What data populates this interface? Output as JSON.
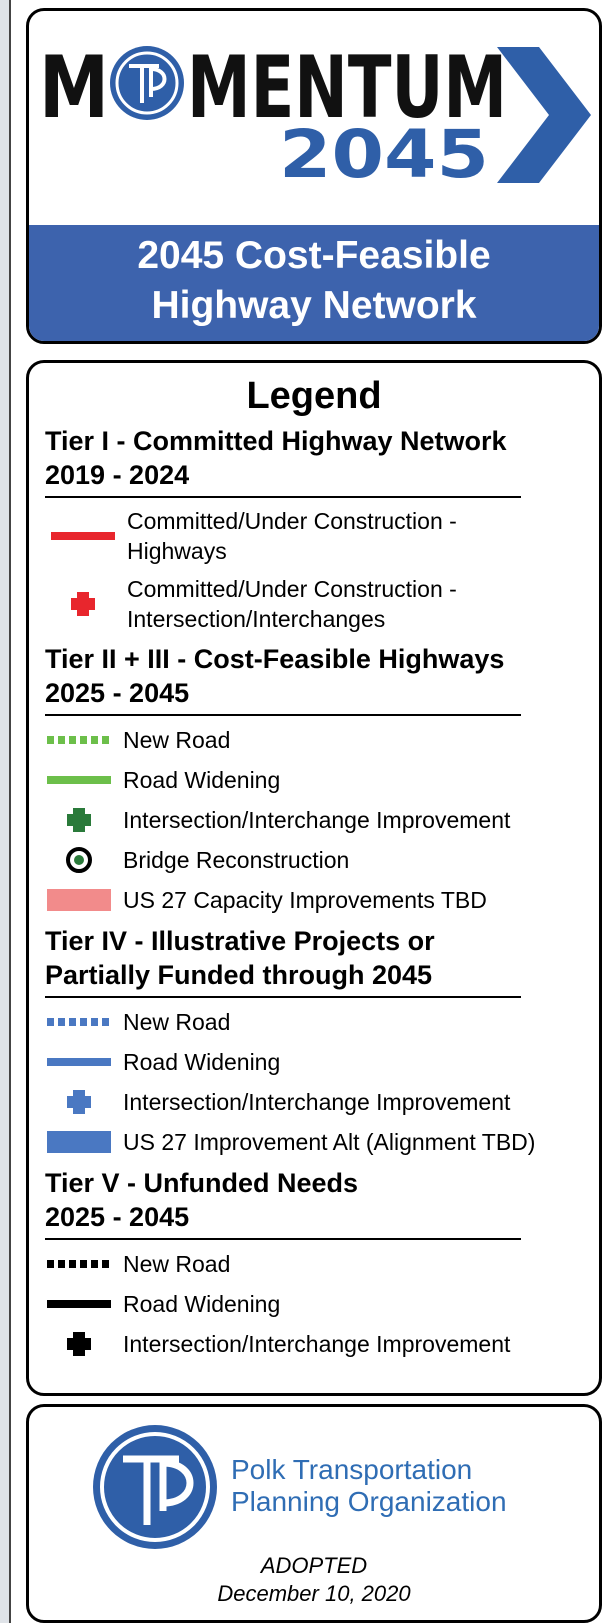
{
  "header": {
    "logo": {
      "word_start": "M",
      "word_end": "MENTUM",
      "year": "2045"
    },
    "title_lines": [
      "2045 Cost-Feasible",
      "Highway Network"
    ]
  },
  "legend": {
    "title": "Legend",
    "sections": [
      {
        "title_lines": [
          "Tier I - Committed Highway Network",
          "2019 - 2024"
        ],
        "items": [
          {
            "label": "Committed/Under Construction - Highways",
            "symbol": "solid",
            "color": "#e8262d"
          },
          {
            "label": "Committed/Under Construction - Intersection/Interchanges",
            "symbol": "plus",
            "color": "#e8262d"
          }
        ]
      },
      {
        "title_lines": [
          "Tier II + III - Cost-Feasible Highways",
          "2025 - 2045"
        ],
        "items": [
          {
            "label": "New Road",
            "symbol": "dashed",
            "color": "#6cbf4a"
          },
          {
            "label": "Road Widening",
            "symbol": "solid",
            "color": "#6cbf4a"
          },
          {
            "label": "Intersection/Interchange Improvement",
            "symbol": "plus",
            "color": "#2a7a3a"
          },
          {
            "label": "Bridge Reconstruction",
            "symbol": "bullseye",
            "color": "#2a7a3a"
          },
          {
            "label": "US 27 Capacity Improvements TBD",
            "symbol": "band",
            "color": "#f28b8b"
          }
        ]
      },
      {
        "title_lines": [
          "Tier IV - Illustrative Projects or",
          "Partially Funded through 2045"
        ],
        "items": [
          {
            "label": "New Road",
            "symbol": "dashed",
            "color": "#4a78c2"
          },
          {
            "label": "Road Widening",
            "symbol": "solid",
            "color": "#4a78c2"
          },
          {
            "label": "Intersection/Interchange Improvement",
            "symbol": "plus",
            "color": "#4a78c2"
          },
          {
            "label": "US 27 Improvement Alt (Alignment TBD)",
            "symbol": "band",
            "color": "#4a78c2"
          }
        ]
      },
      {
        "title_lines": [
          "Tier V - Unfunded Needs",
          "2025 - 2045"
        ],
        "items": [
          {
            "label": "New Road",
            "symbol": "dashed",
            "color": "#000000"
          },
          {
            "label": "Road Widening",
            "symbol": "solid",
            "color": "#000000"
          },
          {
            "label": "Intersection/Interchange Improvement",
            "symbol": "plus",
            "color": "#000000"
          }
        ]
      }
    ]
  },
  "footer": {
    "org_lines": [
      "Polk Transportation",
      "Planning Organization"
    ],
    "status": "ADOPTED",
    "date": "December 10, 2020"
  }
}
